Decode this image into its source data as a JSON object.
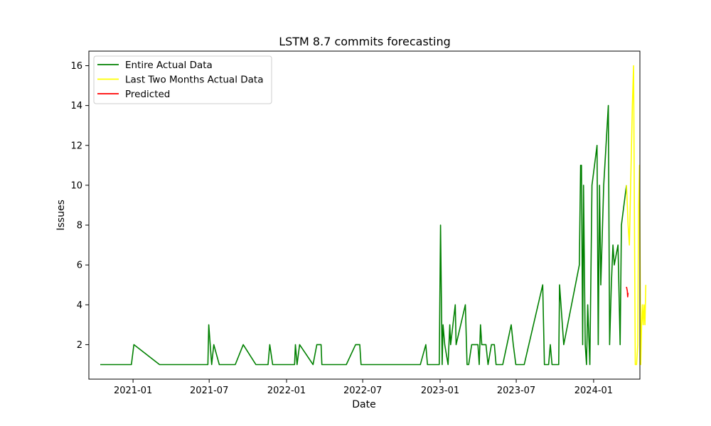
{
  "chart_data": {
    "type": "line",
    "title": "LSTM 8.7 commits forecasting",
    "xlabel": "Date",
    "ylabel": "Issues",
    "xlim": [
      "2020-09-18",
      "2024-04-20"
    ],
    "ylim": [
      0.27,
      16.73
    ],
    "x_ticks": [
      "2021-01-01",
      "2021-07-01",
      "2022-01-01",
      "2022-07-01",
      "2023-01-01",
      "2023-07-01",
      "2024-01-01"
    ],
    "x_tick_labels": [
      "2021-01",
      "2021-07",
      "2022-01",
      "2022-07",
      "2023-01",
      "2023-07",
      "2024-01"
    ],
    "y_ticks": [
      2,
      4,
      6,
      8,
      10,
      12,
      14,
      16
    ],
    "grid": false,
    "legend": "top-left",
    "series": [
      {
        "name": "Entire Actual Data",
        "color": "#008000",
        "points": [
          [
            "2020-10-15",
            1
          ],
          [
            "2020-12-28",
            1
          ],
          [
            "2021-01-03",
            2
          ],
          [
            "2021-03-05",
            1
          ],
          [
            "2021-06-28",
            1
          ],
          [
            "2021-06-30",
            3
          ],
          [
            "2021-07-07",
            1
          ],
          [
            "2021-07-12",
            2
          ],
          [
            "2021-07-25",
            1
          ],
          [
            "2021-09-01",
            1
          ],
          [
            "2021-09-20",
            2
          ],
          [
            "2021-10-20",
            1
          ],
          [
            "2021-11-18",
            1
          ],
          [
            "2021-11-22",
            2
          ],
          [
            "2021-11-29",
            1
          ],
          [
            "2022-01-20",
            1
          ],
          [
            "2022-01-22",
            2
          ],
          [
            "2022-01-26",
            1
          ],
          [
            "2022-02-01",
            2
          ],
          [
            "2022-03-05",
            1
          ],
          [
            "2022-03-14",
            2
          ],
          [
            "2022-03-24",
            2
          ],
          [
            "2022-03-26",
            1
          ],
          [
            "2022-05-23",
            1
          ],
          [
            "2022-06-14",
            2
          ],
          [
            "2022-06-24",
            2
          ],
          [
            "2022-06-27",
            1
          ],
          [
            "2022-11-15",
            1
          ],
          [
            "2022-11-28",
            2
          ],
          [
            "2022-12-02",
            1
          ],
          [
            "2022-12-30",
            1
          ],
          [
            "2023-01-02",
            8
          ],
          [
            "2023-01-06",
            1
          ],
          [
            "2023-01-08",
            3
          ],
          [
            "2023-01-12",
            2
          ],
          [
            "2023-01-20",
            1
          ],
          [
            "2023-01-24",
            3
          ],
          [
            "2023-01-26",
            2
          ],
          [
            "2023-02-06",
            4
          ],
          [
            "2023-02-08",
            2
          ],
          [
            "2023-03-02",
            4
          ],
          [
            "2023-03-06",
            1
          ],
          [
            "2023-03-10",
            1
          ],
          [
            "2023-03-17",
            2
          ],
          [
            "2023-04-01",
            2
          ],
          [
            "2023-04-04",
            1
          ],
          [
            "2023-04-07",
            3
          ],
          [
            "2023-04-10",
            2
          ],
          [
            "2023-04-20",
            2
          ],
          [
            "2023-04-25",
            1
          ],
          [
            "2023-05-03",
            2
          ],
          [
            "2023-05-10",
            2
          ],
          [
            "2023-05-14",
            1
          ],
          [
            "2023-05-30",
            1
          ],
          [
            "2023-06-19",
            3
          ],
          [
            "2023-06-24",
            2
          ],
          [
            "2023-06-30",
            1
          ],
          [
            "2023-07-20",
            1
          ],
          [
            "2023-09-02",
            5
          ],
          [
            "2023-09-06",
            1
          ],
          [
            "2023-09-16",
            1
          ],
          [
            "2023-09-20",
            2
          ],
          [
            "2023-09-24",
            1
          ],
          [
            "2023-10-10",
            1
          ],
          [
            "2023-10-12",
            5
          ],
          [
            "2023-10-22",
            2
          ],
          [
            "2023-11-28",
            6
          ],
          [
            "2023-12-01",
            11
          ],
          [
            "2023-12-03",
            11
          ],
          [
            "2023-12-06",
            2
          ],
          [
            "2023-12-08",
            10
          ],
          [
            "2023-12-12",
            2
          ],
          [
            "2023-12-15",
            1
          ],
          [
            "2023-12-18",
            4
          ],
          [
            "2023-12-23",
            1
          ],
          [
            "2023-12-28",
            10
          ],
          [
            "2024-01-09",
            12
          ],
          [
            "2024-01-12",
            2
          ],
          [
            "2024-01-15",
            10
          ],
          [
            "2024-01-18",
            5
          ],
          [
            "2024-01-25",
            10
          ],
          [
            "2024-02-05",
            14
          ],
          [
            "2024-02-08",
            2
          ],
          [
            "2024-02-12",
            5
          ],
          [
            "2024-02-16",
            7
          ],
          [
            "2024-02-19",
            6
          ],
          [
            "2024-02-28",
            7
          ],
          [
            "2024-03-04",
            2
          ],
          [
            "2024-03-07",
            8
          ],
          [
            "2024-03-19",
            10
          ]
        ]
      },
      {
        "name": "Last Two Months Actual Data",
        "color": "#ffff00",
        "points": [
          [
            "2024-03-19",
            10
          ],
          [
            "2024-03-21",
            9
          ],
          [
            "2024-03-23",
            8
          ],
          [
            "2024-03-26",
            7
          ],
          [
            "2024-03-29",
            10
          ],
          [
            "2024-04-02",
            14
          ],
          [
            "2024-04-05",
            16
          ],
          [
            "2024-04-09",
            1
          ],
          [
            "2024-04-12",
            1
          ],
          [
            "2024-04-15",
            2
          ],
          [
            "2024-04-17",
            9
          ],
          [
            "2024-04-19",
            11
          ],
          [
            "2024-04-22",
            1
          ],
          [
            "2024-04-24",
            3
          ],
          [
            "2024-04-26",
            4
          ],
          [
            "2024-04-28",
            3
          ],
          [
            "2024-04-30",
            4
          ],
          [
            "2024-05-02",
            3
          ],
          [
            "2024-05-04",
            5
          ]
        ]
      },
      {
        "name": "Predicted",
        "color": "#ff0000",
        "points": [
          [
            "2024-03-19",
            4.9
          ],
          [
            "2024-03-21",
            4.7
          ],
          [
            "2024-03-22",
            4.4
          ],
          [
            "2024-03-23",
            4.6
          ]
        ]
      }
    ]
  }
}
